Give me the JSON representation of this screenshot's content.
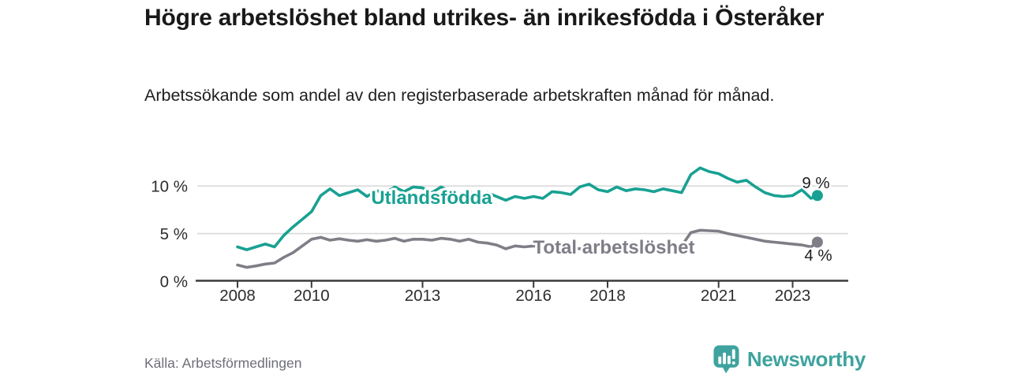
{
  "chart_data": {
    "type": "line",
    "title": "Högre arbetslöshet bland utrikes- än inrikesfödda i Österåker",
    "subtitle": "Arbetssökande som andel av den registerbaserade arbetskraften månad för månad.",
    "unit": "%",
    "grid": "horizontal",
    "ylim": [
      0,
      12.4
    ],
    "xlim": [
      2006.9,
      2024.5
    ],
    "yticks": [
      {
        "label": "0 %",
        "value": 0
      },
      {
        "label": "5 %",
        "value": 5
      },
      {
        "label": "10 %",
        "value": 10
      }
    ],
    "xticks": [
      {
        "label": "2008",
        "year": 2008
      },
      {
        "label": "2010",
        "year": 2010
      },
      {
        "label": "2013",
        "year": 2013
      },
      {
        "label": "2016",
        "year": 2016
      },
      {
        "label": "2018",
        "year": 2018
      },
      {
        "label": "2021",
        "year": 2021
      },
      {
        "label": "2023",
        "year": 2023
      }
    ],
    "x": [
      2008.0,
      2008.25,
      2008.5,
      2008.75,
      2009.0,
      2009.25,
      2009.5,
      2009.75,
      2010.0,
      2010.25,
      2010.5,
      2010.75,
      2011.0,
      2011.25,
      2011.5,
      2011.75,
      2012.0,
      2012.25,
      2012.5,
      2012.75,
      2013.0,
      2013.25,
      2013.5,
      2013.75,
      2014.0,
      2014.25,
      2014.5,
      2014.75,
      2015.0,
      2015.25,
      2015.5,
      2015.75,
      2016.0,
      2016.25,
      2016.5,
      2016.75,
      2017.0,
      2017.25,
      2017.5,
      2017.75,
      2018.0,
      2018.25,
      2018.5,
      2018.75,
      2019.0,
      2019.25,
      2019.5,
      2019.75,
      2020.0,
      2020.25,
      2020.5,
      2020.75,
      2021.0,
      2021.25,
      2021.5,
      2021.75,
      2022.0,
      2022.25,
      2022.5,
      2022.75,
      2023.0,
      2023.25,
      2023.5,
      2023.67
    ],
    "series": [
      {
        "name": "Utlandsfödda",
        "color": "#18a192",
        "end_label": "9 %",
        "end_value": 9,
        "values": [
          3.6,
          3.3,
          3.6,
          3.9,
          3.6,
          4.8,
          5.7,
          6.5,
          7.3,
          9.0,
          9.7,
          9.0,
          9.3,
          9.6,
          8.9,
          9.5,
          9.3,
          9.9,
          9.4,
          9.9,
          9.8,
          9.3,
          9.9,
          9.4,
          9.0,
          9.4,
          8.7,
          9.3,
          8.9,
          8.5,
          8.9,
          8.7,
          8.9,
          8.7,
          9.4,
          9.3,
          9.1,
          9.9,
          10.2,
          9.6,
          9.4,
          9.9,
          9.5,
          9.7,
          9.6,
          9.4,
          9.7,
          9.5,
          9.3,
          11.2,
          11.9,
          11.5,
          11.3,
          10.8,
          10.4,
          10.6,
          9.9,
          9.3,
          9.0,
          8.9,
          9.0,
          9.6,
          8.7,
          9.0
        ]
      },
      {
        "name": "Total arbetslöshet",
        "color": "#7e7e87",
        "end_label": "4 %",
        "end_value": 4,
        "values": [
          1.7,
          1.45,
          1.6,
          1.8,
          1.9,
          2.5,
          3.0,
          3.7,
          4.4,
          4.6,
          4.3,
          4.45,
          4.3,
          4.2,
          4.35,
          4.2,
          4.3,
          4.5,
          4.2,
          4.4,
          4.4,
          4.3,
          4.5,
          4.4,
          4.2,
          4.4,
          4.1,
          4.0,
          3.8,
          3.4,
          3.7,
          3.6,
          3.7,
          3.6,
          3.5,
          3.5,
          3.5,
          3.4,
          3.4,
          3.4,
          3.4,
          3.3,
          3.3,
          3.3,
          3.3,
          3.3,
          3.4,
          3.5,
          3.7,
          5.1,
          5.35,
          5.3,
          5.25,
          5.0,
          4.8,
          4.6,
          4.4,
          4.2,
          4.1,
          4.0,
          3.9,
          3.8,
          3.6,
          4.1
        ]
      }
    ]
  },
  "footer": {
    "source": "Källa: Arbetsförmedlingen",
    "logo_text": "Newsworthy"
  }
}
